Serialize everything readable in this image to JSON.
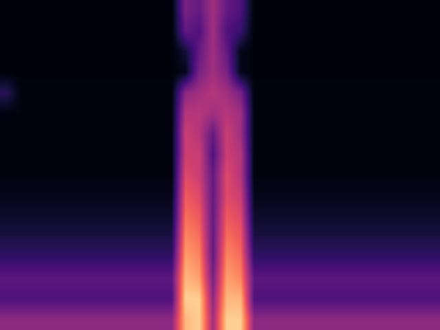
{
  "chart_data": {
    "type": "heatmap",
    "color": "magma",
    "tick_labels": false,
    "color_range": [
      0,
      1
    ],
    "cells": [
      [
        0.02,
        0.02,
        0.02,
        0.02,
        0.02,
        0.02,
        0.02,
        0.02,
        0.02,
        0.02,
        0.02,
        0.02,
        0.02,
        0.35,
        0.3,
        0.45,
        0.3,
        0.25,
        0.02,
        0.02,
        0.02,
        0.02,
        0.02,
        0.02,
        0.02,
        0.02,
        0.02,
        0.02,
        0.02,
        0.02,
        0.02,
        0.02
      ],
      [
        0.02,
        0.02,
        0.02,
        0.02,
        0.02,
        0.02,
        0.02,
        0.02,
        0.02,
        0.02,
        0.02,
        0.02,
        0.02,
        0.3,
        0.25,
        0.45,
        0.25,
        0.2,
        0.02,
        0.02,
        0.02,
        0.02,
        0.02,
        0.02,
        0.02,
        0.02,
        0.02,
        0.02,
        0.02,
        0.02,
        0.02,
        0.02
      ],
      [
        0.02,
        0.02,
        0.02,
        0.02,
        0.02,
        0.02,
        0.02,
        0.02,
        0.02,
        0.02,
        0.02,
        0.02,
        0.02,
        0.1,
        0.3,
        0.45,
        0.3,
        0.05,
        0.02,
        0.02,
        0.02,
        0.02,
        0.02,
        0.02,
        0.02,
        0.02,
        0.02,
        0.02,
        0.02,
        0.02,
        0.02,
        0.02
      ],
      [
        0.02,
        0.02,
        0.02,
        0.02,
        0.02,
        0.02,
        0.02,
        0.02,
        0.02,
        0.02,
        0.02,
        0.02,
        0.02,
        0.05,
        0.35,
        0.45,
        0.35,
        0.05,
        0.02,
        0.02,
        0.02,
        0.02,
        0.02,
        0.02,
        0.02,
        0.02,
        0.02,
        0.02,
        0.02,
        0.02,
        0.02,
        0.02
      ],
      [
        0.15,
        0.03,
        0.03,
        0.03,
        0.03,
        0.03,
        0.03,
        0.03,
        0.03,
        0.03,
        0.03,
        0.03,
        0.03,
        0.4,
        0.45,
        0.5,
        0.45,
        0.35,
        0.03,
        0.03,
        0.03,
        0.03,
        0.03,
        0.03,
        0.03,
        0.03,
        0.03,
        0.03,
        0.03,
        0.03,
        0.03,
        0.03
      ],
      [
        0.03,
        0.03,
        0.03,
        0.03,
        0.03,
        0.03,
        0.03,
        0.03,
        0.03,
        0.03,
        0.03,
        0.03,
        0.03,
        0.5,
        0.5,
        0.45,
        0.5,
        0.45,
        0.03,
        0.03,
        0.03,
        0.03,
        0.03,
        0.03,
        0.03,
        0.03,
        0.03,
        0.03,
        0.03,
        0.03,
        0.03,
        0.03
      ],
      [
        0.03,
        0.03,
        0.03,
        0.03,
        0.03,
        0.03,
        0.03,
        0.03,
        0.03,
        0.03,
        0.03,
        0.03,
        0.03,
        0.55,
        0.5,
        0.3,
        0.55,
        0.45,
        0.03,
        0.03,
        0.03,
        0.03,
        0.03,
        0.03,
        0.03,
        0.03,
        0.03,
        0.03,
        0.03,
        0.03,
        0.03,
        0.03
      ],
      [
        0.03,
        0.03,
        0.03,
        0.03,
        0.03,
        0.03,
        0.03,
        0.03,
        0.03,
        0.03,
        0.03,
        0.03,
        0.03,
        0.55,
        0.55,
        0.25,
        0.55,
        0.5,
        0.03,
        0.03,
        0.03,
        0.03,
        0.03,
        0.03,
        0.03,
        0.03,
        0.03,
        0.03,
        0.03,
        0.03,
        0.03,
        0.03
      ],
      [
        0.03,
        0.03,
        0.03,
        0.03,
        0.03,
        0.03,
        0.03,
        0.03,
        0.03,
        0.03,
        0.03,
        0.03,
        0.03,
        0.6,
        0.55,
        0.3,
        0.6,
        0.5,
        0.03,
        0.03,
        0.03,
        0.03,
        0.03,
        0.03,
        0.03,
        0.03,
        0.03,
        0.03,
        0.03,
        0.03,
        0.03,
        0.03
      ],
      [
        0.05,
        0.05,
        0.05,
        0.05,
        0.05,
        0.05,
        0.05,
        0.05,
        0.05,
        0.05,
        0.05,
        0.05,
        0.05,
        0.65,
        0.6,
        0.3,
        0.6,
        0.55,
        0.05,
        0.05,
        0.05,
        0.05,
        0.05,
        0.05,
        0.05,
        0.05,
        0.05,
        0.05,
        0.05,
        0.05,
        0.05,
        0.05
      ],
      [
        0.08,
        0.08,
        0.08,
        0.08,
        0.08,
        0.08,
        0.08,
        0.08,
        0.08,
        0.08,
        0.08,
        0.08,
        0.08,
        0.7,
        0.65,
        0.3,
        0.65,
        0.6,
        0.08,
        0.08,
        0.08,
        0.08,
        0.08,
        0.08,
        0.08,
        0.08,
        0.08,
        0.08,
        0.08,
        0.08,
        0.08,
        0.08
      ],
      [
        0.12,
        0.12,
        0.12,
        0.12,
        0.12,
        0.12,
        0.12,
        0.12,
        0.12,
        0.12,
        0.12,
        0.12,
        0.12,
        0.75,
        0.7,
        0.3,
        0.7,
        0.65,
        0.12,
        0.12,
        0.12,
        0.12,
        0.12,
        0.12,
        0.12,
        0.12,
        0.12,
        0.12,
        0.12,
        0.12,
        0.12,
        0.12
      ],
      [
        0.18,
        0.18,
        0.18,
        0.18,
        0.18,
        0.18,
        0.18,
        0.18,
        0.18,
        0.18,
        0.18,
        0.18,
        0.18,
        0.8,
        0.75,
        0.3,
        0.75,
        0.7,
        0.18,
        0.18,
        0.18,
        0.18,
        0.18,
        0.18,
        0.18,
        0.18,
        0.18,
        0.18,
        0.18,
        0.18,
        0.18,
        0.18
      ],
      [
        0.28,
        0.28,
        0.28,
        0.28,
        0.28,
        0.28,
        0.28,
        0.28,
        0.28,
        0.28,
        0.28,
        0.28,
        0.28,
        0.85,
        0.8,
        0.35,
        0.8,
        0.75,
        0.28,
        0.28,
        0.28,
        0.28,
        0.28,
        0.28,
        0.28,
        0.28,
        0.28,
        0.28,
        0.28,
        0.28,
        0.28,
        0.28
      ],
      [
        0.25,
        0.25,
        0.25,
        0.25,
        0.25,
        0.25,
        0.25,
        0.25,
        0.25,
        0.25,
        0.25,
        0.25,
        0.25,
        0.9,
        0.9,
        0.4,
        0.85,
        0.85,
        0.25,
        0.25,
        0.25,
        0.25,
        0.25,
        0.25,
        0.25,
        0.25,
        0.25,
        0.25,
        0.25,
        0.25,
        0.25,
        0.25
      ],
      [
        0.4,
        0.4,
        0.4,
        0.4,
        0.4,
        0.4,
        0.4,
        0.4,
        0.4,
        0.4,
        0.4,
        0.4,
        0.4,
        0.85,
        0.9,
        0.45,
        0.9,
        0.9,
        0.4,
        0.4,
        0.4,
        0.4,
        0.4,
        0.4,
        0.4,
        0.4,
        0.4,
        0.4,
        0.4,
        0.4,
        0.4,
        0.4
      ]
    ]
  }
}
